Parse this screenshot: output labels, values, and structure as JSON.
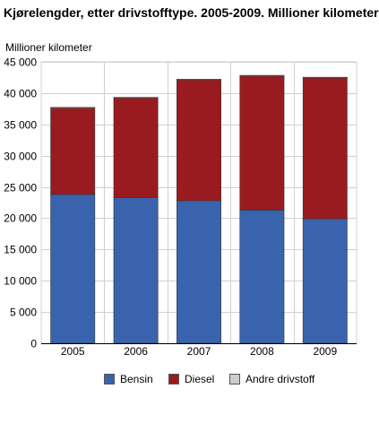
{
  "chart_data": {
    "type": "bar",
    "stacked": true,
    "title": "Kjørelengder, etter drivstofftype. 2005-2009. Millioner kilometer",
    "ylabel": "Millioner kilometer",
    "xlabel": "",
    "categories": [
      "2005",
      "2006",
      "2007",
      "2008",
      "2009"
    ],
    "ylim": [
      0,
      45000
    ],
    "yticks": [
      0,
      5000,
      10000,
      15000,
      20000,
      25000,
      30000,
      35000,
      40000,
      45000
    ],
    "ytick_labels": [
      "0",
      "5 000",
      "10 000",
      "15 000",
      "20 000",
      "25 000",
      "30 000",
      "35 000",
      "40 000",
      "45 000"
    ],
    "grid": true,
    "legend_position": "bottom",
    "series": [
      {
        "name": "Bensin",
        "color": "#3a63ad",
        "values": [
          23800,
          23300,
          22800,
          21300,
          19900
        ]
      },
      {
        "name": "Diesel",
        "color": "#9a1b1f",
        "values": [
          13900,
          16000,
          19400,
          21500,
          22600
        ]
      },
      {
        "name": "Andre drivstoff",
        "color": "#cccccc",
        "values": [
          20,
          20,
          30,
          40,
          40
        ]
      }
    ]
  }
}
